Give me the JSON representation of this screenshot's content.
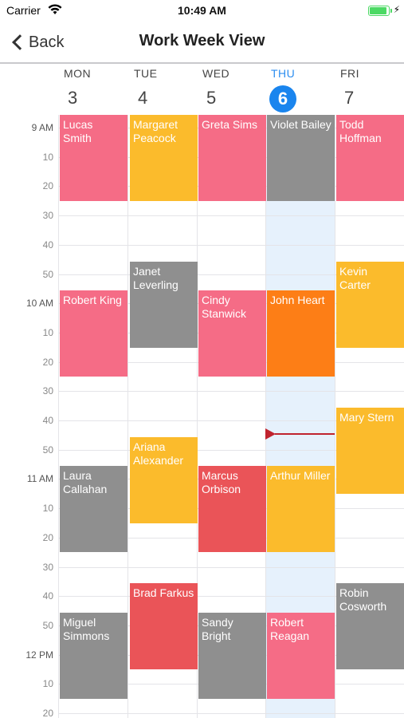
{
  "status": {
    "carrier": "Carrier",
    "time": "10:49 AM"
  },
  "nav": {
    "back_label": "Back",
    "title": "Work Week View"
  },
  "days": [
    {
      "name": "MON",
      "date": "3",
      "today": false
    },
    {
      "name": "TUE",
      "date": "4",
      "today": false
    },
    {
      "name": "WED",
      "date": "5",
      "today": false
    },
    {
      "name": "THU",
      "date": "6",
      "today": true
    },
    {
      "name": "FRI",
      "date": "7",
      "today": false
    }
  ],
  "time_labels": [
    "9 AM",
    "10",
    "20",
    "30",
    "40",
    "50",
    "10 AM",
    "10",
    "20",
    "30",
    "40",
    "50",
    "11 AM",
    "10",
    "20",
    "30",
    "40",
    "50",
    "12 PM",
    "10",
    "20"
  ],
  "hour_start": "09:00",
  "current_time": "10:49",
  "colors": {
    "pink": "#f56c86",
    "gold": "#fbbb2c",
    "gray": "#8f8f8f",
    "orange": "#fd7e16",
    "red": "#ea5458",
    "today_accent": "#1a85ee",
    "now_line": "#c0232e"
  },
  "events": [
    {
      "name": "Lucas Smith",
      "day": 0,
      "start": "09:00",
      "end": "09:30",
      "color": "pink"
    },
    {
      "name": "Robert King",
      "day": 0,
      "start": "10:00",
      "end": "10:30",
      "color": "pink"
    },
    {
      "name": "Laura Callahan",
      "day": 0,
      "start": "11:00",
      "end": "11:30",
      "color": "gray"
    },
    {
      "name": "Miguel Simmons",
      "day": 0,
      "start": "11:50",
      "end": "12:20",
      "color": "gray"
    },
    {
      "name": "Margaret Peacock",
      "day": 1,
      "start": "09:00",
      "end": "09:30",
      "color": "gold"
    },
    {
      "name": "Janet Leverling",
      "day": 1,
      "start": "09:50",
      "end": "10:20",
      "color": "gray"
    },
    {
      "name": "Ariana Alexander",
      "day": 1,
      "start": "10:50",
      "end": "11:20",
      "color": "gold"
    },
    {
      "name": "Brad Farkus",
      "day": 1,
      "start": "11:40",
      "end": "12:10",
      "color": "red"
    },
    {
      "name": "Greta Sims",
      "day": 2,
      "start": "09:00",
      "end": "09:30",
      "color": "pink"
    },
    {
      "name": "Cindy Stanwick",
      "day": 2,
      "start": "10:00",
      "end": "10:30",
      "color": "pink"
    },
    {
      "name": "Marcus Orbison",
      "day": 2,
      "start": "11:00",
      "end": "11:30",
      "color": "red"
    },
    {
      "name": "Sandy Bright",
      "day": 2,
      "start": "11:50",
      "end": "12:20",
      "color": "gray"
    },
    {
      "name": "Violet Bailey",
      "day": 3,
      "start": "09:00",
      "end": "09:30",
      "color": "gray"
    },
    {
      "name": "John Heart",
      "day": 3,
      "start": "10:00",
      "end": "10:30",
      "color": "orange"
    },
    {
      "name": "Arthur Miller",
      "day": 3,
      "start": "11:00",
      "end": "11:30",
      "color": "gold"
    },
    {
      "name": "Robert Reagan",
      "day": 3,
      "start": "11:50",
      "end": "12:20",
      "color": "pink"
    },
    {
      "name": "Todd Hoffman",
      "day": 4,
      "start": "09:00",
      "end": "09:30",
      "color": "pink"
    },
    {
      "name": "Kevin Carter",
      "day": 4,
      "start": "09:50",
      "end": "10:20",
      "color": "gold"
    },
    {
      "name": "Mary Stern",
      "day": 4,
      "start": "10:40",
      "end": "11:10",
      "color": "gold"
    },
    {
      "name": "Robin Cosworth",
      "day": 4,
      "start": "11:40",
      "end": "12:10",
      "color": "gray"
    }
  ]
}
